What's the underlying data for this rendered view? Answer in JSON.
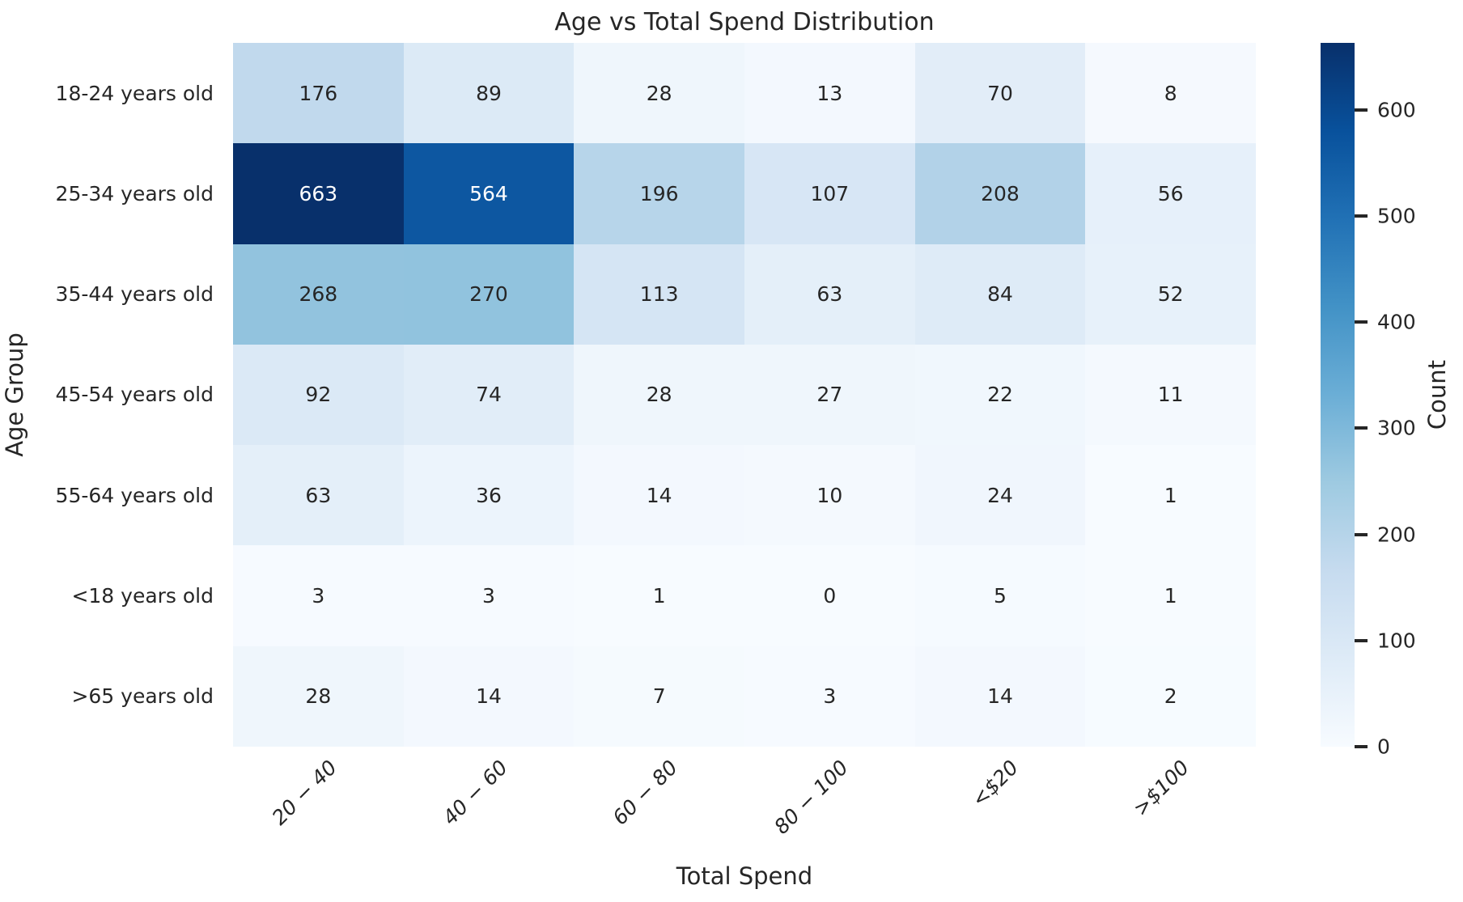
{
  "chart_data": {
    "type": "heatmap",
    "title": "Age vs Total Spend Distribution",
    "xlabel": "Total Spend",
    "ylabel": "Age Group",
    "rows": [
      "18-24 years old",
      "25-34 years old",
      "35-44 years old",
      "45-54 years old",
      "55-64 years old",
      "<18 years old",
      ">65 years old"
    ],
    "columns": [
      "20 − 40",
      "40 − 60",
      "60 − 80",
      "80 − 100",
      "<$20",
      ">$100"
    ],
    "values": [
      [
        176,
        89,
        28,
        13,
        70,
        8
      ],
      [
        663,
        564,
        196,
        107,
        208,
        56
      ],
      [
        268,
        270,
        113,
        63,
        84,
        52
      ],
      [
        92,
        74,
        28,
        27,
        22,
        11
      ],
      [
        63,
        36,
        14,
        10,
        24,
        1
      ],
      [
        3,
        3,
        1,
        0,
        5,
        1
      ],
      [
        28,
        14,
        7,
        3,
        14,
        2
      ]
    ],
    "vmin": 0,
    "vmax": 663,
    "colormap": "Blues",
    "colormap_stops": [
      "#f7fbff",
      "#deebf7",
      "#c6dbef",
      "#9ecae1",
      "#6baed6",
      "#4292c6",
      "#2171b5",
      "#08519c",
      "#08306b"
    ],
    "colorbar_label": "Count",
    "colorbar_ticks": [
      0,
      100,
      200,
      300,
      400,
      500,
      600
    ],
    "legend_position": "right",
    "grid": false,
    "annotated": true
  },
  "colors": {
    "background": "#ffffff",
    "text": "#262626",
    "annotation_light": "#ffffff",
    "annotation_dark": "#262626",
    "tick_mark": "#262626"
  }
}
